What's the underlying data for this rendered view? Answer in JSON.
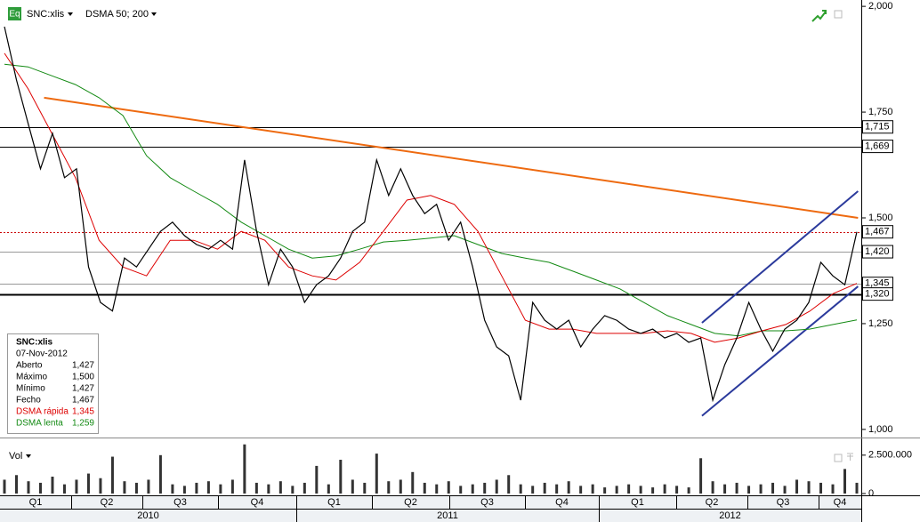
{
  "header": {
    "icon": "Eq",
    "symbol": "SNC:xlis",
    "indicator": "DSMA 50; 200"
  },
  "info": {
    "title": "SNC:xlis",
    "date": "07-Nov-2012",
    "rows": [
      {
        "label": "Aberto",
        "value": "1,427",
        "color": "#000000"
      },
      {
        "label": "Máximo",
        "value": "1,500",
        "color": "#000000"
      },
      {
        "label": "Mínimo",
        "value": "1,427",
        "color": "#000000"
      },
      {
        "label": "Fecho",
        "value": "1,467",
        "color": "#000000"
      },
      {
        "label": "DSMA rápida",
        "value": "1,345",
        "color": "#dd0000"
      },
      {
        "label": "DSMA lenta",
        "value": "1,259",
        "color": "#138a13"
      }
    ]
  },
  "chart_data": [
    {
      "type": "line",
      "ylim": [
        985,
        2015
      ],
      "yticks": [
        {
          "value": 1000,
          "label": "1,000"
        },
        {
          "value": 1250,
          "label": "1,250"
        },
        {
          "value": 1500,
          "label": "1,500"
        },
        {
          "value": 1750,
          "label": "1,750"
        },
        {
          "value": 2000,
          "label": "2,000"
        }
      ],
      "quarters": [
        "Q1",
        "Q2",
        "Q3",
        "Q4",
        "Q1",
        "Q2",
        "Q3",
        "Q4",
        "Q1",
        "Q2",
        "Q3",
        "Q4"
      ],
      "years": [
        "2010",
        "2011",
        "2012"
      ],
      "series": [
        {
          "name": "Fecho",
          "color": "#000000",
          "width": 1.2,
          "values": [
            1952,
            1826,
            1720,
            1616,
            1700,
            1595,
            1616,
            1384,
            1300,
            1280,
            1405,
            1384,
            1426,
            1468,
            1490,
            1458,
            1437,
            1426,
            1447,
            1426,
            1637,
            1468,
            1342,
            1426,
            1384,
            1300,
            1342,
            1363,
            1405,
            1468,
            1490,
            1637,
            1553,
            1616,
            1553,
            1510,
            1532,
            1447,
            1490,
            1384,
            1258,
            1195,
            1174,
            1069,
            1300,
            1258,
            1237,
            1258,
            1195,
            1237,
            1269,
            1258,
            1237,
            1227,
            1237,
            1216,
            1227,
            1206,
            1216,
            1069,
            1153,
            1216,
            1300,
            1237,
            1185,
            1237,
            1258,
            1300,
            1395,
            1363,
            1342,
            1467
          ]
        },
        {
          "name": "DSMA rápida",
          "color": "#dd0000",
          "width": 1,
          "values": [
            1889,
            1805,
            1700,
            1595,
            1447,
            1384,
            1363,
            1447,
            1447,
            1426,
            1468,
            1447,
            1384,
            1363,
            1353,
            1395,
            1468,
            1542,
            1553,
            1532,
            1468,
            1363,
            1258,
            1237,
            1237,
            1227,
            1227,
            1227,
            1233,
            1227,
            1206,
            1216,
            1233,
            1248,
            1279,
            1321,
            1345
          ]
        },
        {
          "name": "DSMA lenta",
          "color": "#138a13",
          "width": 1,
          "values": [
            1863,
            1857,
            1836,
            1815,
            1784,
            1742,
            1647,
            1595,
            1563,
            1532,
            1490,
            1458,
            1426,
            1405,
            1410,
            1426,
            1443,
            1447,
            1452,
            1458,
            1437,
            1416,
            1405,
            1395,
            1374,
            1353,
            1332,
            1300,
            1269,
            1248,
            1227,
            1221,
            1233,
            1233,
            1237,
            1248,
            1259
          ]
        }
      ],
      "levels": [
        {
          "value": 1715,
          "label": "1,715",
          "color": "#000000",
          "style": "solid",
          "width": 1
        },
        {
          "value": 1669,
          "label": "1,669",
          "color": "#000000",
          "style": "solid",
          "width": 1
        },
        {
          "value": 1467,
          "label": "1,467",
          "color": "#cc0000",
          "style": "dotted",
          "width": 1
        },
        {
          "value": 1420,
          "label": "1,420",
          "color": "#999999",
          "style": "solid",
          "width": 1
        },
        {
          "value": 1345,
          "label": "1,345",
          "color": "#999999",
          "style": "solid",
          "width": 1
        },
        {
          "value": 1320,
          "label": "1,320",
          "color": "#000000",
          "style": "solid",
          "width": 2
        }
      ],
      "trendlines": [
        {
          "color": "#ee6a10",
          "x": [
            3.3,
            71.1
          ],
          "y": [
            1784,
            1500
          ]
        },
        {
          "color": "#2b3a9c",
          "x": [
            58.1,
            71.1
          ],
          "y": [
            1032,
            1338
          ]
        },
        {
          "color": "#2b3a9c",
          "x": [
            58.1,
            71.1
          ],
          "y": [
            1252,
            1563
          ]
        }
      ]
    },
    {
      "type": "bar",
      "title": "Vol",
      "color": "#333333",
      "ylim": [
        0,
        3300000
      ],
      "yticks": [
        0,
        {
          "value": 2500000,
          "label": "2.500.000"
        }
      ],
      "values": [
        900000,
        1200000,
        800000,
        700000,
        1100000,
        600000,
        900000,
        1300000,
        1000000,
        2400000,
        800000,
        700000,
        900000,
        2500000,
        600000,
        500000,
        700000,
        800000,
        600000,
        900000,
        3200000,
        700000,
        600000,
        800000,
        500000,
        700000,
        1800000,
        600000,
        2200000,
        900000,
        700000,
        2600000,
        800000,
        900000,
        1400000,
        700000,
        600000,
        800000,
        500000,
        600000,
        700000,
        900000,
        1200000,
        600000,
        500000,
        700000,
        600000,
        800000,
        500000,
        600000,
        400000,
        500000,
        600000,
        500000,
        400000,
        600000,
        500000,
        400000,
        2300000,
        800000,
        600000,
        700000,
        500000,
        600000,
        700000,
        500000,
        900000,
        800000,
        700000,
        600000,
        1600000,
        700000
      ]
    }
  ]
}
